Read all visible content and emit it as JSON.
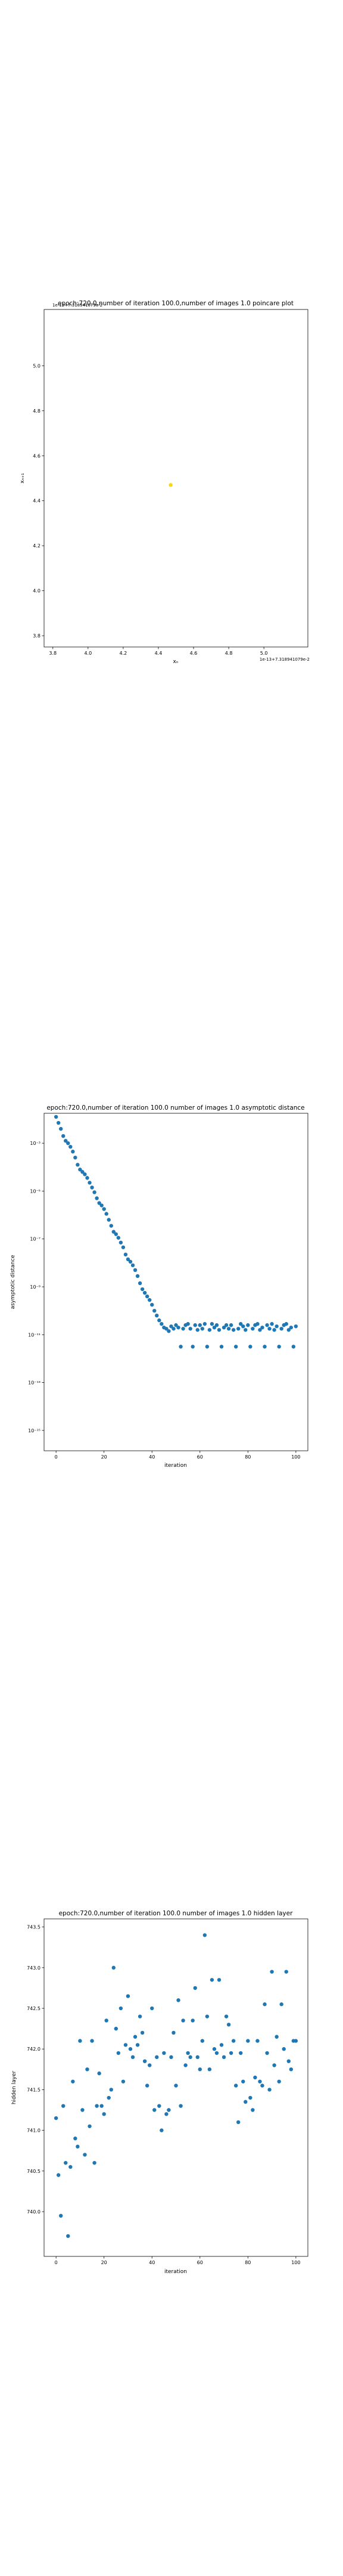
{
  "chart_data": [
    {
      "type": "scatter",
      "title": "epoch:720.0,number of iteration 100.0,number of images 1.0 poincare plot",
      "offset_label_y": "1e-13+7.318941079e-2",
      "offset_label_x": "1e-13+7.318941079e-2",
      "xlabel": "xₙ",
      "ylabel": "xₙ₊₁",
      "xlim": [
        3.75,
        5.25
      ],
      "ylim": [
        3.75,
        5.25
      ],
      "xticks": [
        3.8,
        4.0,
        4.2,
        4.4,
        4.6,
        4.8,
        5.0
      ],
      "yticks": [
        3.8,
        4.0,
        4.2,
        4.4,
        4.6,
        4.8,
        5.0
      ],
      "xtick_labels": [
        "3.8",
        "4.0",
        "4.2",
        "4.4",
        "4.6",
        "4.8",
        "5.0"
      ],
      "ytick_labels": [
        "3.8",
        "4.0",
        "4.2",
        "4.4",
        "4.6",
        "4.8",
        "5.0"
      ],
      "points": [
        {
          "x": 4.47,
          "y": 4.47
        }
      ],
      "point_color": "#f5d90a",
      "grid": false
    },
    {
      "type": "scatter",
      "title": "epoch:720.0,number of iteration 100.0  number of images 1.0 asymptotic distance",
      "xlabel": "iteration",
      "ylabel": "asymptotic distance",
      "yscale": "log",
      "xlim": [
        -5,
        105
      ],
      "ylim_exp": [
        -15.85,
        -1.75
      ],
      "xticks": [
        0,
        20,
        40,
        60,
        80,
        100
      ],
      "xtick_labels": [
        "0",
        "20",
        "40",
        "60",
        "80",
        "100"
      ],
      "ytick_exponents": [
        -3,
        -5,
        -7,
        -9,
        -11,
        -13,
        -15
      ],
      "ytick_labels": [
        "10⁻³",
        "10⁻⁵",
        "10⁻⁷",
        "10⁻⁹",
        "10⁻¹¹",
        "10⁻¹³",
        "10⁻¹⁵"
      ],
      "x": [
        0,
        1,
        2,
        3,
        4,
        5,
        6,
        7,
        8,
        9,
        10,
        11,
        12,
        13,
        14,
        15,
        16,
        17,
        18,
        19,
        20,
        21,
        22,
        23,
        24,
        25,
        26,
        27,
        28,
        29,
        30,
        31,
        32,
        33,
        34,
        35,
        36,
        37,
        38,
        39,
        40,
        41,
        42,
        43,
        44,
        45,
        46,
        47,
        48,
        49,
        50,
        51,
        52,
        53,
        54,
        55,
        56,
        57,
        58,
        59,
        60,
        61,
        62,
        63,
        64,
        65,
        66,
        67,
        68,
        69,
        70,
        71,
        72,
        73,
        74,
        75,
        76,
        77,
        78,
        79,
        80,
        81,
        82,
        83,
        84,
        85,
        86,
        87,
        88,
        89,
        90,
        91,
        92,
        93,
        94,
        95,
        96,
        97,
        98,
        99,
        100
      ],
      "y_exp": [
        -1.9,
        -2.15,
        -2.4,
        -2.7,
        -2.9,
        -3.0,
        -3.15,
        -3.35,
        -3.6,
        -3.9,
        -4.1,
        -4.2,
        -4.3,
        -4.45,
        -4.65,
        -4.85,
        -5.05,
        -5.3,
        -5.5,
        -5.6,
        -5.75,
        -5.95,
        -6.2,
        -6.45,
        -6.7,
        -6.8,
        -6.95,
        -7.15,
        -7.35,
        -7.65,
        -7.85,
        -7.95,
        -8.1,
        -8.3,
        -8.55,
        -8.85,
        -9.1,
        -9.25,
        -9.4,
        -9.55,
        -9.75,
        -10.0,
        -10.2,
        -10.4,
        -10.55,
        -10.7,
        -10.75,
        -10.85,
        -10.65,
        -10.75,
        -10.6,
        -10.7,
        -11.5,
        -10.75,
        -10.6,
        -10.55,
        -10.75,
        -11.5,
        -10.6,
        -10.8,
        -10.6,
        -10.75,
        -10.55,
        -11.5,
        -10.8,
        -10.55,
        -10.7,
        -10.6,
        -10.8,
        -11.5,
        -10.7,
        -10.6,
        -10.75,
        -10.6,
        -10.8,
        -11.5,
        -10.75,
        -10.55,
        -10.65,
        -10.8,
        -10.6,
        -11.5,
        -10.75,
        -10.6,
        -10.55,
        -10.8,
        -10.7,
        -11.5,
        -10.6,
        -10.75,
        -10.55,
        -10.8,
        -10.65,
        -11.5,
        -10.75,
        -10.6,
        -10.55,
        -10.8,
        -10.7,
        -11.5,
        -10.65
      ],
      "point_color": "#1f77b4",
      "grid": false
    },
    {
      "type": "scatter",
      "title": "epoch:720.0,number of iteration 100.0  number of images 1.0 hidden layer",
      "xlabel": "iteration",
      "ylabel": "hidden layer",
      "xlim": [
        -5,
        105
      ],
      "ylim": [
        739.45,
        743.6
      ],
      "xticks": [
        0,
        20,
        40,
        60,
        80,
        100
      ],
      "xtick_labels": [
        "0",
        "20",
        "40",
        "60",
        "80",
        "100"
      ],
      "yticks": [
        740.0,
        740.5,
        741.0,
        741.5,
        742.0,
        742.5,
        743.0,
        743.5
      ],
      "ytick_labels": [
        "740.0",
        "740.5",
        "741.0",
        "741.5",
        "742.0",
        "742.5",
        "743.0",
        "743.5"
      ],
      "x": [
        0,
        1,
        2,
        3,
        4,
        5,
        6,
        7,
        8,
        9,
        10,
        11,
        12,
        13,
        14,
        15,
        16,
        17,
        18,
        19,
        20,
        21,
        22,
        23,
        24,
        25,
        26,
        27,
        28,
        29,
        30,
        31,
        32,
        33,
        34,
        35,
        36,
        37,
        38,
        39,
        40,
        41,
        42,
        43,
        44,
        45,
        46,
        47,
        48,
        49,
        50,
        51,
        52,
        53,
        54,
        55,
        56,
        57,
        58,
        59,
        60,
        61,
        62,
        63,
        64,
        65,
        66,
        67,
        68,
        69,
        70,
        71,
        72,
        73,
        74,
        75,
        76,
        77,
        78,
        79,
        80,
        81,
        82,
        83,
        84,
        85,
        86,
        87,
        88,
        89,
        90,
        91,
        92,
        93,
        94,
        95,
        96,
        97,
        98,
        99,
        100
      ],
      "y": [
        741.15,
        740.45,
        739.95,
        741.3,
        740.6,
        739.7,
        740.55,
        741.6,
        740.9,
        740.8,
        742.1,
        741.25,
        740.7,
        741.75,
        741.05,
        742.1,
        740.6,
        741.3,
        741.7,
        741.3,
        741.2,
        742.35,
        741.4,
        741.5,
        743.0,
        742.25,
        741.95,
        742.5,
        741.6,
        742.05,
        742.65,
        742.0,
        741.9,
        742.15,
        742.05,
        742.4,
        742.2,
        741.85,
        741.55,
        741.8,
        742.5,
        741.25,
        741.9,
        741.3,
        741.0,
        741.95,
        741.2,
        741.25,
        741.9,
        742.2,
        741.55,
        742.6,
        741.3,
        742.35,
        741.8,
        741.95,
        741.9,
        742.35,
        742.75,
        741.9,
        741.75,
        742.1,
        743.4,
        742.4,
        741.75,
        742.85,
        742.0,
        741.95,
        742.85,
        742.05,
        741.9,
        742.4,
        742.3,
        741.95,
        742.1,
        741.55,
        741.1,
        741.95,
        741.6,
        741.35,
        742.1,
        741.4,
        741.25,
        741.65,
        742.1,
        741.6,
        741.55,
        742.55,
        741.95,
        741.5,
        742.95,
        741.8,
        742.15,
        741.6,
        742.55,
        742.0,
        742.95,
        741.85,
        741.75,
        742.1,
        742.1
      ],
      "point_color": "#1f77b4",
      "grid": false
    }
  ]
}
